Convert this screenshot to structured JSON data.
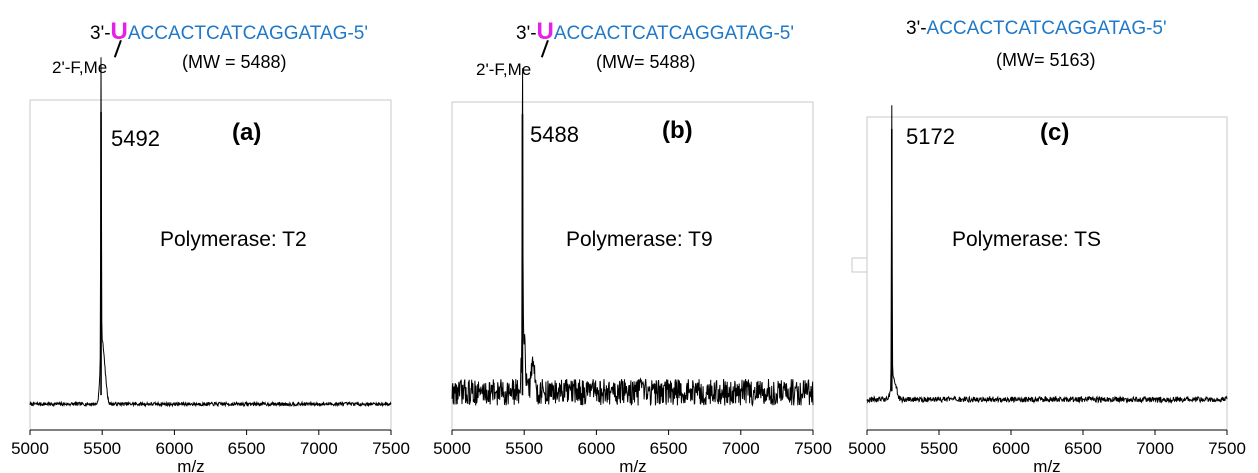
{
  "panels": [
    {
      "id": "a",
      "sequence_prefix": "3'-",
      "modified_base": "U",
      "sequence_body": "ACCACTCATCAGGATAG",
      "sequence_suffix": "-5'",
      "modification": "2'-F,Me",
      "mw_label": "(MW = 5488)"
    },
    {
      "id": "b",
      "sequence_prefix": "3'-",
      "modified_base": "U",
      "sequence_body": "ACCACTCATCAGGATAG",
      "sequence_suffix": "-5'",
      "modification": "2'-F,Me",
      "mw_label": "(MW= 5488)"
    },
    {
      "id": "c",
      "sequence_prefix": "3'-",
      "modified_base": "",
      "sequence_body": "ACCACTCATCAGGATAG",
      "sequence_suffix": "-5'",
      "modification": "",
      "mw_label": "(MW= 5163)"
    }
  ],
  "colors": {
    "modified_base": "#e620e6",
    "sequence": "#1f78c8",
    "trace": "#000000"
  },
  "chart_data": [
    {
      "type": "line",
      "panel_label": "(a)",
      "peak_label": "5492",
      "annotation": "Polymerase: T2",
      "xlabel": "m/z",
      "ylabel": "",
      "xlim": [
        5000,
        7500
      ],
      "xticks": [
        5000,
        5500,
        6000,
        6500,
        7000,
        7500
      ],
      "ylim": [
        0,
        1
      ],
      "grid": false,
      "peak": {
        "x": 5492,
        "y": 1.0
      },
      "shoulders": [
        {
          "x": 5498,
          "y": 0.2
        },
        {
          "x": 5520,
          "y": 0.08
        }
      ],
      "baseline": 0.02,
      "noise": 0.006
    },
    {
      "type": "line",
      "panel_label": "(b)",
      "peak_label": "5488",
      "annotation": "Polymerase: T9",
      "xlabel": "m/z",
      "ylabel": "",
      "xlim": [
        5000,
        7500
      ],
      "xticks": [
        5000,
        5500,
        6000,
        6500,
        7000,
        7500
      ],
      "ylim": [
        0,
        1
      ],
      "grid": false,
      "peak": {
        "x": 5488,
        "y": 1.0
      },
      "shoulders": [
        {
          "x": 5495,
          "y": 0.2
        },
        {
          "x": 5560,
          "y": 0.1
        }
      ],
      "baseline": 0.06,
      "noise": 0.045
    },
    {
      "type": "line",
      "panel_label": "(c)",
      "peak_label": "5172",
      "annotation": "Polymerase: TS",
      "xlabel": "m/z",
      "ylabel": "",
      "xlim": [
        5000,
        7500
      ],
      "xticks": [
        5000,
        5500,
        6000,
        6500,
        7000,
        7500
      ],
      "ylim": [
        0,
        1
      ],
      "grid": false,
      "peak": {
        "x": 5172,
        "y": 1.0
      },
      "shoulders": [
        {
          "x": 5176,
          "y": 0.08
        },
        {
          "x": 5200,
          "y": 0.04
        }
      ],
      "baseline": 0.02,
      "noise": 0.01
    }
  ]
}
